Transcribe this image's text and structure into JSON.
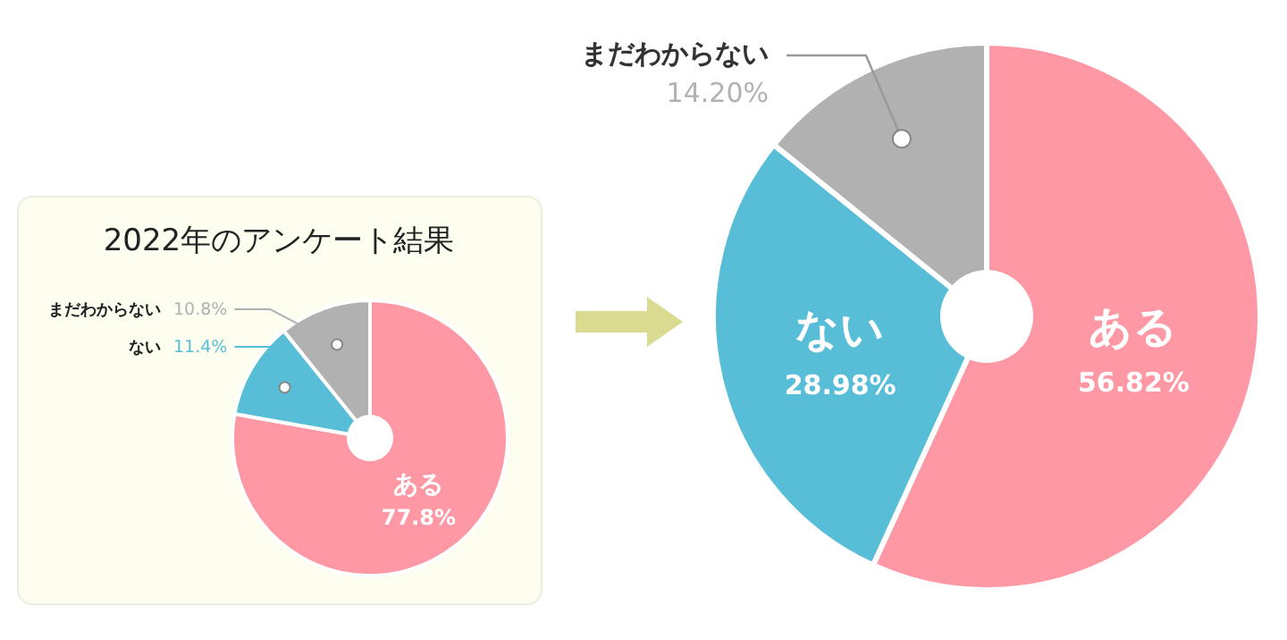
{
  "chart_data": [
    {
      "type": "pie",
      "title": "2022年のアンケート結果",
      "categories": [
        "ある",
        "ない",
        "まだわからない"
      ],
      "values": [
        77.8,
        11.4,
        10.8
      ],
      "colors": [
        "#fe98a4",
        "#58bed7",
        "#b1b1b1"
      ],
      "value_labels": [
        "77.8%",
        "11.4%",
        "10.8%"
      ]
    },
    {
      "type": "pie",
      "categories": [
        "ある",
        "ない",
        "まだわからない"
      ],
      "values": [
        56.82,
        28.98,
        14.2
      ],
      "colors": [
        "#fe98a4",
        "#58bed7",
        "#b1b1b1"
      ],
      "value_labels": [
        "56.82%",
        "28.98%",
        "14.20%"
      ]
    }
  ]
}
